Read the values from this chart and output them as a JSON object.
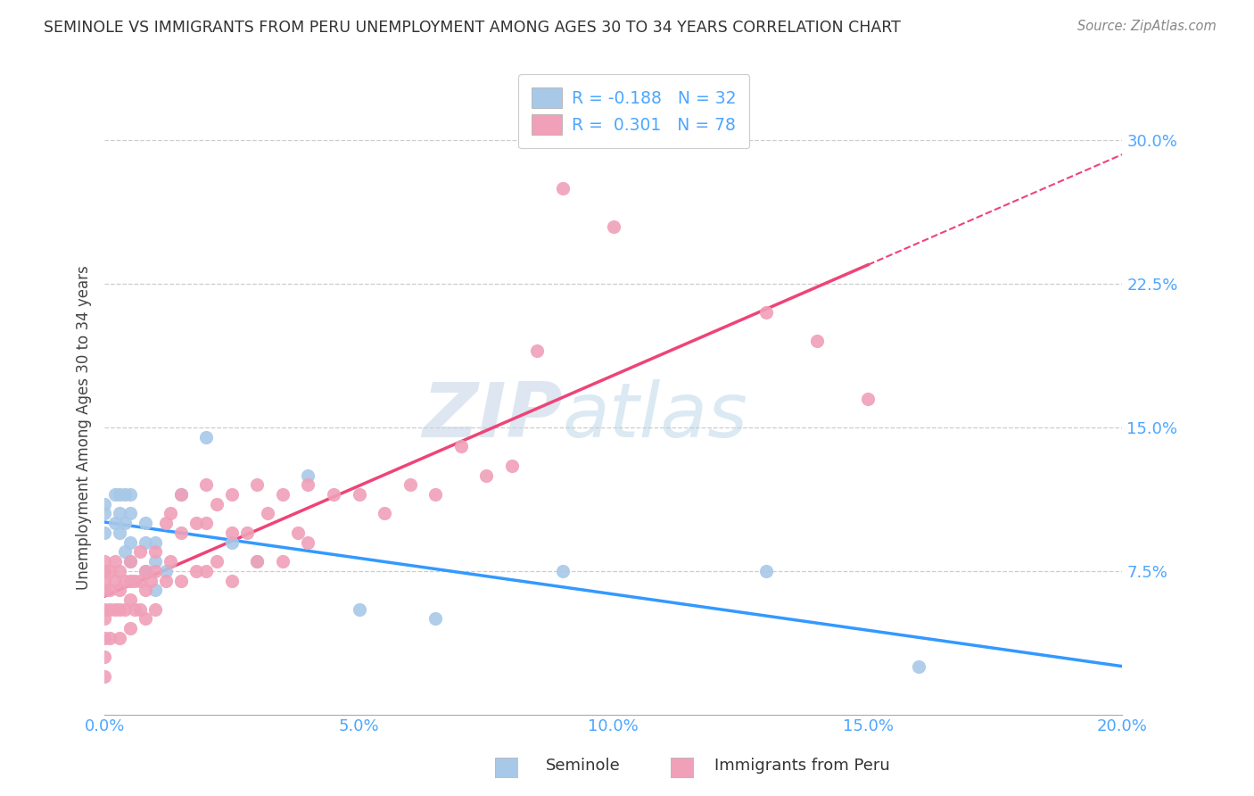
{
  "title": "SEMINOLE VS IMMIGRANTS FROM PERU UNEMPLOYMENT AMONG AGES 30 TO 34 YEARS CORRELATION CHART",
  "source": "Source: ZipAtlas.com",
  "ylabel_label": "Unemployment Among Ages 30 to 34 years",
  "xlim": [
    0.0,
    0.2
  ],
  "ylim": [
    -0.02,
    0.3
  ],
  "plot_ylim": [
    0.0,
    0.3
  ],
  "seminole_color": "#a8c8e8",
  "peru_color": "#f0a0b8",
  "trend_seminole_color": "#3399ff",
  "trend_peru_color": "#ee4477",
  "seminole_R": "-0.188",
  "seminole_N": "32",
  "peru_R": "0.301",
  "peru_N": "78",
  "watermark_zip": "ZIP",
  "watermark_atlas": "atlas",
  "seminole_x": [
    0.0,
    0.0,
    0.0,
    0.002,
    0.002,
    0.003,
    0.003,
    0.003,
    0.004,
    0.004,
    0.004,
    0.005,
    0.005,
    0.005,
    0.005,
    0.008,
    0.008,
    0.008,
    0.01,
    0.01,
    0.01,
    0.012,
    0.015,
    0.02,
    0.025,
    0.03,
    0.04,
    0.05,
    0.065,
    0.09,
    0.13,
    0.16
  ],
  "seminole_y": [
    0.11,
    0.105,
    0.095,
    0.115,
    0.1,
    0.115,
    0.105,
    0.095,
    0.115,
    0.1,
    0.085,
    0.115,
    0.105,
    0.09,
    0.08,
    0.1,
    0.09,
    0.075,
    0.09,
    0.08,
    0.065,
    0.075,
    0.115,
    0.145,
    0.09,
    0.08,
    0.125,
    0.055,
    0.05,
    0.075,
    0.075,
    0.025
  ],
  "peru_x": [
    0.0,
    0.0,
    0.0,
    0.0,
    0.0,
    0.0,
    0.0,
    0.0,
    0.0,
    0.001,
    0.001,
    0.001,
    0.001,
    0.002,
    0.002,
    0.002,
    0.003,
    0.003,
    0.003,
    0.003,
    0.004,
    0.004,
    0.005,
    0.005,
    0.005,
    0.005,
    0.006,
    0.006,
    0.007,
    0.007,
    0.007,
    0.008,
    0.008,
    0.008,
    0.009,
    0.01,
    0.01,
    0.01,
    0.012,
    0.012,
    0.013,
    0.013,
    0.015,
    0.015,
    0.015,
    0.018,
    0.018,
    0.02,
    0.02,
    0.02,
    0.022,
    0.022,
    0.025,
    0.025,
    0.025,
    0.028,
    0.03,
    0.03,
    0.032,
    0.035,
    0.035,
    0.038,
    0.04,
    0.04,
    0.045,
    0.05,
    0.055,
    0.06,
    0.065,
    0.07,
    0.075,
    0.08,
    0.085,
    0.09,
    0.1,
    0.13,
    0.14,
    0.15
  ],
  "peru_y": [
    0.08,
    0.075,
    0.07,
    0.065,
    0.055,
    0.05,
    0.04,
    0.03,
    0.02,
    0.075,
    0.065,
    0.055,
    0.04,
    0.08,
    0.07,
    0.055,
    0.075,
    0.065,
    0.055,
    0.04,
    0.07,
    0.055,
    0.08,
    0.07,
    0.06,
    0.045,
    0.07,
    0.055,
    0.085,
    0.07,
    0.055,
    0.075,
    0.065,
    0.05,
    0.07,
    0.085,
    0.075,
    0.055,
    0.1,
    0.07,
    0.105,
    0.08,
    0.115,
    0.095,
    0.07,
    0.1,
    0.075,
    0.12,
    0.1,
    0.075,
    0.11,
    0.08,
    0.115,
    0.095,
    0.07,
    0.095,
    0.12,
    0.08,
    0.105,
    0.115,
    0.08,
    0.095,
    0.12,
    0.09,
    0.115,
    0.115,
    0.105,
    0.12,
    0.115,
    0.14,
    0.125,
    0.13,
    0.19,
    0.275,
    0.255,
    0.21,
    0.195,
    0.165
  ]
}
